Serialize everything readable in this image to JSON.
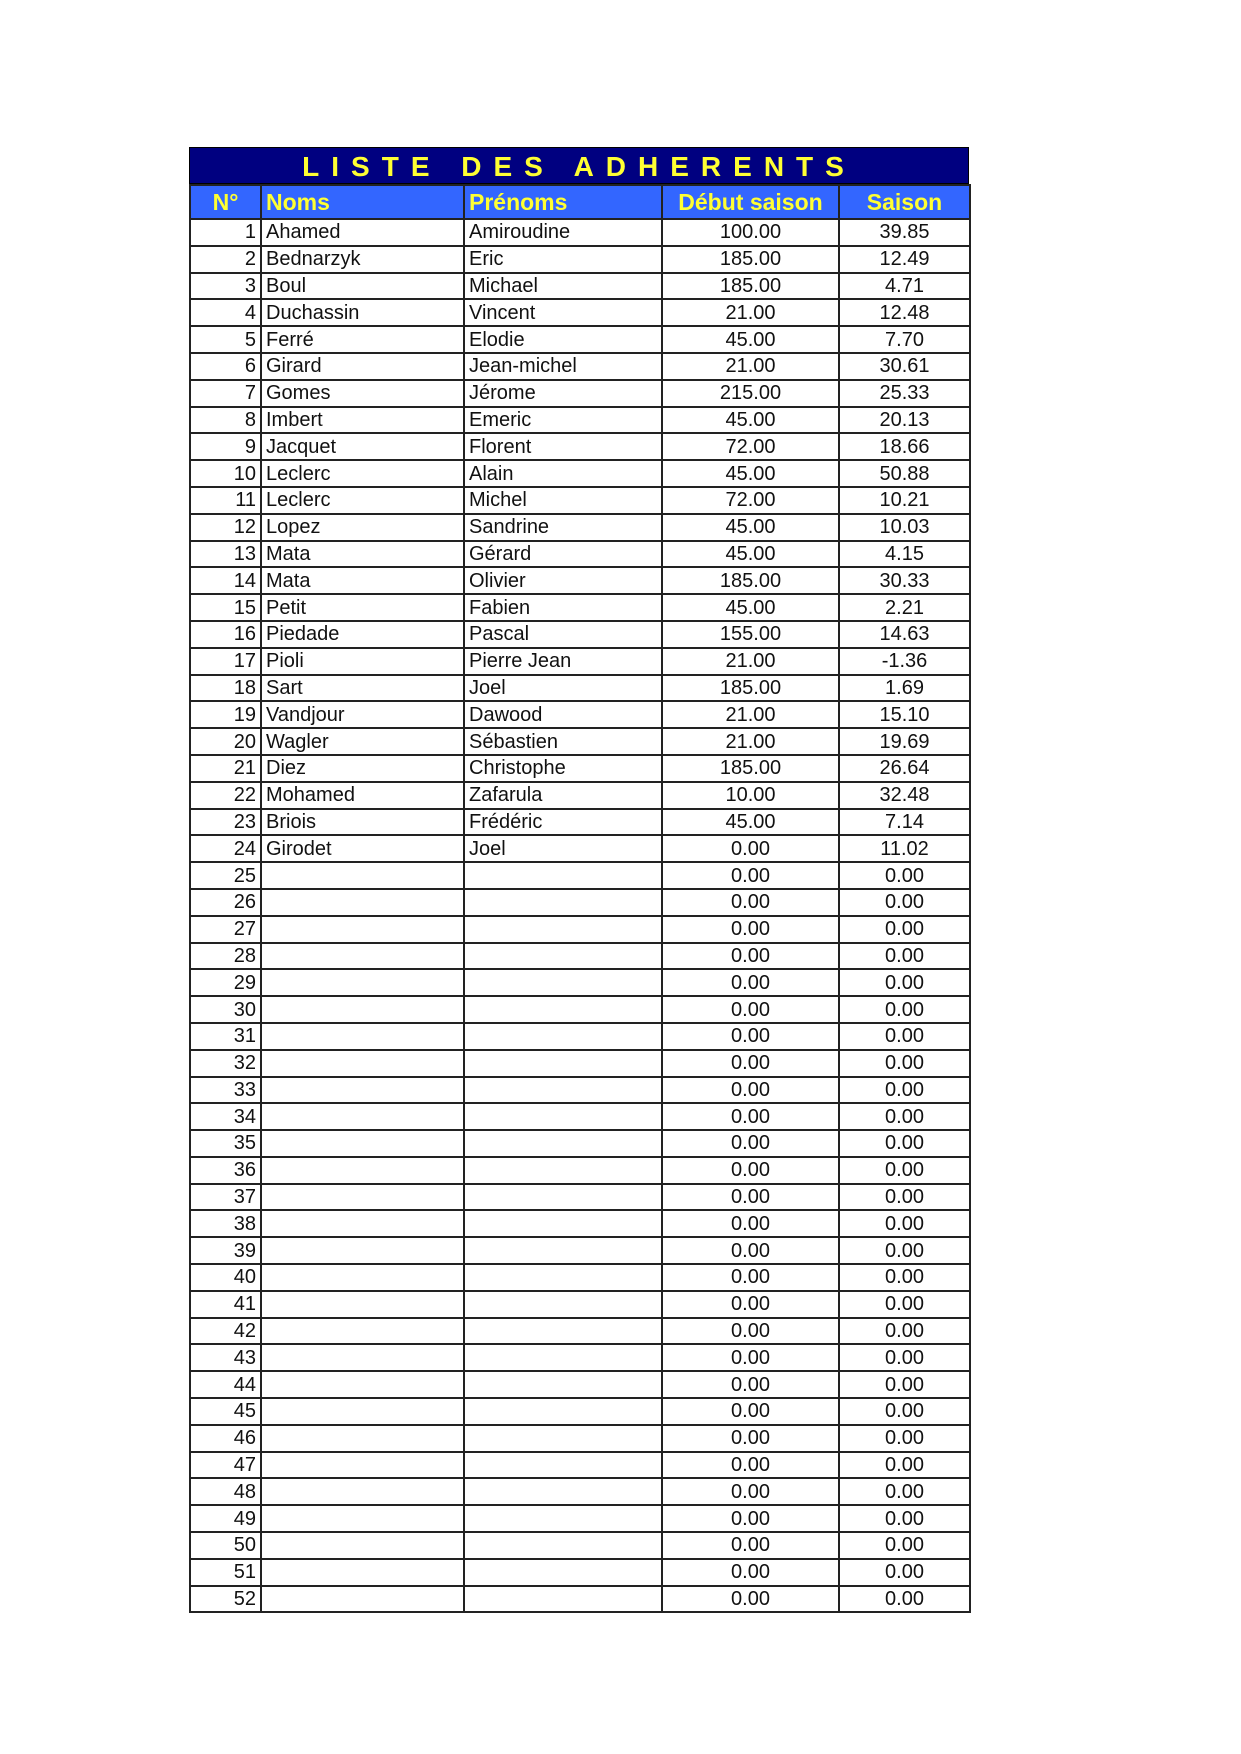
{
  "title": "LISTE DES ADHERENTS",
  "colors": {
    "title_bg": "#000080",
    "header_bg": "#3366ff",
    "header_text": "#ffff33"
  },
  "columns": [
    "N°",
    "Noms",
    "Prénoms",
    "Début saison",
    "Saison"
  ],
  "rows": [
    {
      "n": "1",
      "nom": "Ahamed",
      "prenom": "Amiroudine",
      "debut": "100.00",
      "saison": "39.85"
    },
    {
      "n": "2",
      "nom": "Bednarzyk",
      "prenom": "Eric",
      "debut": "185.00",
      "saison": "12.49"
    },
    {
      "n": "3",
      "nom": "Boul",
      "prenom": "Michael",
      "debut": "185.00",
      "saison": "4.71"
    },
    {
      "n": "4",
      "nom": "Duchassin",
      "prenom": "Vincent",
      "debut": "21.00",
      "saison": "12.48"
    },
    {
      "n": "5",
      "nom": "Ferré",
      "prenom": "Elodie",
      "debut": "45.00",
      "saison": "7.70"
    },
    {
      "n": "6",
      "nom": "Girard",
      "prenom": "Jean-michel",
      "debut": "21.00",
      "saison": "30.61"
    },
    {
      "n": "7",
      "nom": "Gomes",
      "prenom": "Jérome",
      "debut": "215.00",
      "saison": "25.33"
    },
    {
      "n": "8",
      "nom": "Imbert",
      "prenom": "Emeric",
      "debut": "45.00",
      "saison": "20.13"
    },
    {
      "n": "9",
      "nom": "Jacquet",
      "prenom": "Florent",
      "debut": "72.00",
      "saison": "18.66"
    },
    {
      "n": "10",
      "nom": "Leclerc",
      "prenom": "Alain",
      "debut": "45.00",
      "saison": "50.88"
    },
    {
      "n": "11",
      "nom": "Leclerc",
      "prenom": "Michel",
      "debut": "72.00",
      "saison": "10.21"
    },
    {
      "n": "12",
      "nom": "Lopez",
      "prenom": "Sandrine",
      "debut": "45.00",
      "saison": "10.03"
    },
    {
      "n": "13",
      "nom": "Mata",
      "prenom": "Gérard",
      "debut": "45.00",
      "saison": "4.15"
    },
    {
      "n": "14",
      "nom": "Mata",
      "prenom": "Olivier",
      "debut": "185.00",
      "saison": "30.33"
    },
    {
      "n": "15",
      "nom": "Petit",
      "prenom": "Fabien",
      "debut": "45.00",
      "saison": "2.21"
    },
    {
      "n": "16",
      "nom": "Piedade",
      "prenom": "Pascal",
      "debut": "155.00",
      "saison": "14.63"
    },
    {
      "n": "17",
      "nom": "Pioli",
      "prenom": "Pierre Jean",
      "debut": "21.00",
      "saison": "-1.36"
    },
    {
      "n": "18",
      "nom": "Sart",
      "prenom": "Joel",
      "debut": "185.00",
      "saison": "1.69"
    },
    {
      "n": "19",
      "nom": "Vandjour",
      "prenom": "Dawood",
      "debut": "21.00",
      "saison": "15.10"
    },
    {
      "n": "20",
      "nom": "Wagler",
      "prenom": "Sébastien",
      "debut": "21.00",
      "saison": "19.69"
    },
    {
      "n": "21",
      "nom": "Diez",
      "prenom": "Christophe",
      "debut": "185.00",
      "saison": "26.64"
    },
    {
      "n": "22",
      "nom": "Mohamed",
      "prenom": "Zafarula",
      "debut": "10.00",
      "saison": "32.48"
    },
    {
      "n": "23",
      "nom": "Briois",
      "prenom": "Frédéric",
      "debut": "45.00",
      "saison": "7.14"
    },
    {
      "n": "24",
      "nom": "Girodet",
      "prenom": "Joel",
      "debut": "0.00",
      "saison": "11.02"
    },
    {
      "n": "25",
      "nom": "",
      "prenom": "",
      "debut": "0.00",
      "saison": "0.00"
    },
    {
      "n": "26",
      "nom": "",
      "prenom": "",
      "debut": "0.00",
      "saison": "0.00"
    },
    {
      "n": "27",
      "nom": "",
      "prenom": "",
      "debut": "0.00",
      "saison": "0.00"
    },
    {
      "n": "28",
      "nom": "",
      "prenom": "",
      "debut": "0.00",
      "saison": "0.00"
    },
    {
      "n": "29",
      "nom": "",
      "prenom": "",
      "debut": "0.00",
      "saison": "0.00"
    },
    {
      "n": "30",
      "nom": "",
      "prenom": "",
      "debut": "0.00",
      "saison": "0.00"
    },
    {
      "n": "31",
      "nom": "",
      "prenom": "",
      "debut": "0.00",
      "saison": "0.00"
    },
    {
      "n": "32",
      "nom": "",
      "prenom": "",
      "debut": "0.00",
      "saison": "0.00"
    },
    {
      "n": "33",
      "nom": "",
      "prenom": "",
      "debut": "0.00",
      "saison": "0.00"
    },
    {
      "n": "34",
      "nom": "",
      "prenom": "",
      "debut": "0.00",
      "saison": "0.00"
    },
    {
      "n": "35",
      "nom": "",
      "prenom": "",
      "debut": "0.00",
      "saison": "0.00"
    },
    {
      "n": "36",
      "nom": "",
      "prenom": "",
      "debut": "0.00",
      "saison": "0.00"
    },
    {
      "n": "37",
      "nom": "",
      "prenom": "",
      "debut": "0.00",
      "saison": "0.00"
    },
    {
      "n": "38",
      "nom": "",
      "prenom": "",
      "debut": "0.00",
      "saison": "0.00"
    },
    {
      "n": "39",
      "nom": "",
      "prenom": "",
      "debut": "0.00",
      "saison": "0.00"
    },
    {
      "n": "40",
      "nom": "",
      "prenom": "",
      "debut": "0.00",
      "saison": "0.00"
    },
    {
      "n": "41",
      "nom": "",
      "prenom": "",
      "debut": "0.00",
      "saison": "0.00"
    },
    {
      "n": "42",
      "nom": "",
      "prenom": "",
      "debut": "0.00",
      "saison": "0.00"
    },
    {
      "n": "43",
      "nom": "",
      "prenom": "",
      "debut": "0.00",
      "saison": "0.00"
    },
    {
      "n": "44",
      "nom": "",
      "prenom": "",
      "debut": "0.00",
      "saison": "0.00"
    },
    {
      "n": "45",
      "nom": "",
      "prenom": "",
      "debut": "0.00",
      "saison": "0.00"
    },
    {
      "n": "46",
      "nom": "",
      "prenom": "",
      "debut": "0.00",
      "saison": "0.00"
    },
    {
      "n": "47",
      "nom": "",
      "prenom": "",
      "debut": "0.00",
      "saison": "0.00"
    },
    {
      "n": "48",
      "nom": "",
      "prenom": "",
      "debut": "0.00",
      "saison": "0.00"
    },
    {
      "n": "49",
      "nom": "",
      "prenom": "",
      "debut": "0.00",
      "saison": "0.00"
    },
    {
      "n": "50",
      "nom": "",
      "prenom": "",
      "debut": "0.00",
      "saison": "0.00"
    },
    {
      "n": "51",
      "nom": "",
      "prenom": "",
      "debut": "0.00",
      "saison": "0.00"
    },
    {
      "n": "52",
      "nom": "",
      "prenom": "",
      "debut": "0.00",
      "saison": "0.00"
    }
  ]
}
